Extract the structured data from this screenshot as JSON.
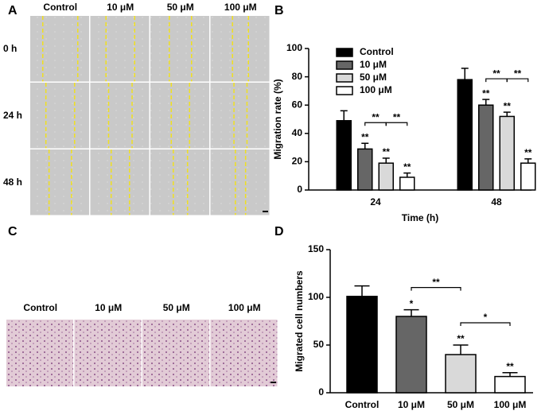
{
  "panels": {
    "A": {
      "label": "A",
      "columns": [
        "Control",
        "10 μM",
        "50 μM",
        "100 μM"
      ],
      "rows": [
        "0 h",
        "24 h",
        "48 h"
      ]
    },
    "C": {
      "label": "C",
      "columns": [
        "Control",
        "10 μM",
        "50 μM",
        "100 μM"
      ]
    }
  },
  "chart_data": [
    {
      "type": "grouped-bar",
      "panel_label": "B",
      "ylabel": "Migration rate (%)",
      "xlabel": "Time (h)",
      "categories": [
        "24",
        "48"
      ],
      "ylim": [
        0,
        100
      ],
      "yticks": [
        0,
        20,
        40,
        60,
        80,
        100
      ],
      "legend": "upper left",
      "series": [
        {
          "name": "Control",
          "color": "#000000",
          "values": [
            49,
            78
          ],
          "errors": [
            7,
            8
          ],
          "significance": [
            null,
            null
          ]
        },
        {
          "name": "10 μM",
          "color": "#666666",
          "values": [
            29,
            60
          ],
          "errors": [
            4,
            4
          ],
          "significance": [
            "**",
            "**"
          ]
        },
        {
          "name": "50 μM",
          "color": "#d9d9d9",
          "values": [
            19,
            52
          ],
          "errors": [
            3.5,
            3
          ],
          "significance": [
            "**",
            "**"
          ]
        },
        {
          "name": "100 μM",
          "color": "#ffffff",
          "values": [
            9,
            19
          ],
          "errors": [
            3,
            3
          ],
          "significance": [
            "**",
            "**"
          ]
        }
      ],
      "brackets": [
        {
          "category": 0,
          "from": 1,
          "to": 2,
          "label": "**"
        },
        {
          "category": 0,
          "from": 2,
          "to": 3,
          "label": "**"
        },
        {
          "category": 1,
          "from": 1,
          "to": 2,
          "label": "**"
        },
        {
          "category": 1,
          "from": 2,
          "to": 3,
          "label": "**"
        }
      ]
    },
    {
      "type": "bar",
      "panel_label": "D",
      "ylabel": "Migrated cell numbers",
      "categories": [
        "Control",
        "10 μM",
        "50 μM",
        "100 μM"
      ],
      "values": [
        101,
        80,
        40,
        17
      ],
      "errors": [
        11,
        7,
        10,
        4
      ],
      "significance": [
        null,
        "*",
        "**",
        "**"
      ],
      "colors": [
        "#000000",
        "#666666",
        "#d9d9d9",
        "#ffffff"
      ],
      "ylim": [
        0,
        150
      ],
      "yticks": [
        0,
        50,
        100,
        150
      ],
      "brackets": [
        {
          "from": 1,
          "to": 2,
          "label": "**"
        },
        {
          "from": 2,
          "to": 3,
          "label": "*"
        }
      ]
    }
  ]
}
